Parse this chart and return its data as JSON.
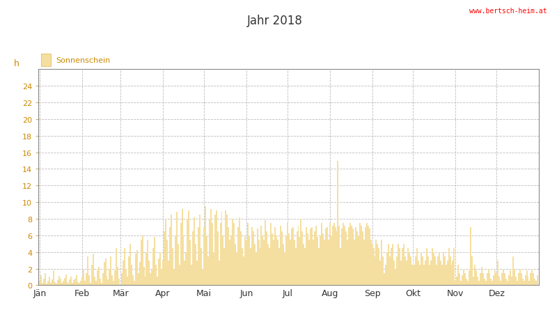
{
  "title": "Jahr 2018",
  "ylabel": "h",
  "bar_color": "#F5DFA0",
  "bar_edge_color": "#E8C878",
  "background_color": "#ffffff",
  "plot_bg_color": "#ffffff",
  "grid_color": "#bbbbbb",
  "legend_label": "Sonnenschein",
  "legend_color": "#F5DFA0",
  "legend_edge_color": "#E8C878",
  "url_text": "www.bertsch-heim.at",
  "url_color": "#ff0000",
  "ylim": [
    0,
    26
  ],
  "yticks": [
    0,
    2,
    4,
    6,
    8,
    10,
    12,
    14,
    16,
    18,
    20,
    22,
    24
  ],
  "month_labels": [
    "Jän",
    "Feb",
    "Mär",
    "Apr",
    "Mai",
    "Jun",
    "Jul",
    "Aug",
    "Sep",
    "Okt",
    "Nov",
    "Dez"
  ],
  "month_starts": [
    1,
    32,
    60,
    91,
    121,
    152,
    182,
    213,
    244,
    274,
    305,
    335
  ],
  "sunshine_hours": [
    0.5,
    1.2,
    0.3,
    0.8,
    1.5,
    0.2,
    0.5,
    1.0,
    0.3,
    0.7,
    1.8,
    0.4,
    0.2,
    0.6,
    1.1,
    0.8,
    0.3,
    0.5,
    0.9,
    1.3,
    0.4,
    0.2,
    0.7,
    1.0,
    0.3,
    0.6,
    0.8,
    1.2,
    0.4,
    0.3,
    0.5,
    1.0,
    2.0,
    0.5,
    1.5,
    3.5,
    1.2,
    0.3,
    2.5,
    3.8,
    1.0,
    0.5,
    1.8,
    2.2,
    0.8,
    0.3,
    1.5,
    2.8,
    3.2,
    1.1,
    0.7,
    2.0,
    3.5,
    1.2,
    0.5,
    1.8,
    4.5,
    2.2,
    0.8,
    0.0,
    1.5,
    3.0,
    4.5,
    2.0,
    1.0,
    3.5,
    5.0,
    2.5,
    1.2,
    0.5,
    3.8,
    4.2,
    1.5,
    2.8,
    5.5,
    6.0,
    2.2,
    1.0,
    4.0,
    5.5,
    3.0,
    1.5,
    2.0,
    4.5,
    5.8,
    2.5,
    1.0,
    3.2,
    4.0,
    2.0,
    3.0,
    6.5,
    8.0,
    5.5,
    3.0,
    7.0,
    8.5,
    4.5,
    2.0,
    6.0,
    8.8,
    5.0,
    2.5,
    7.5,
    9.2,
    6.0,
    3.0,
    4.0,
    8.0,
    9.0,
    5.5,
    2.5,
    6.5,
    8.2,
    5.0,
    3.0,
    7.0,
    8.5,
    4.5,
    2.0,
    7.0,
    9.5,
    6.0,
    3.5,
    8.0,
    9.2,
    7.5,
    4.0,
    8.5,
    9.0,
    6.5,
    3.0,
    7.5,
    8.8,
    6.0,
    4.5,
    9.0,
    8.5,
    7.0,
    5.5,
    6.0,
    8.0,
    7.5,
    5.0,
    4.0,
    7.0,
    8.2,
    6.5,
    4.5,
    3.5,
    6.0,
    5.5,
    7.5,
    6.0,
    4.5,
    7.0,
    6.5,
    5.0,
    4.0,
    6.8,
    5.5,
    4.5,
    7.2,
    6.0,
    5.5,
    7.8,
    6.5,
    5.0,
    4.5,
    7.5,
    6.2,
    5.5,
    7.0,
    6.0,
    5.5,
    4.5,
    7.2,
    6.5,
    5.0,
    4.0,
    6.0,
    7.5,
    6.2,
    5.5,
    6.8,
    7.0,
    5.5,
    4.5,
    6.5,
    7.2,
    5.8,
    8.0,
    6.5,
    5.0,
    4.5,
    7.0,
    6.2,
    5.5,
    6.8,
    7.0,
    5.5,
    6.5,
    7.2,
    5.8,
    4.5,
    6.0,
    7.5,
    6.2,
    5.5,
    6.8,
    7.0,
    5.5,
    7.5,
    6.0,
    7.2,
    7.5,
    7.0,
    6.5,
    15.0,
    7.2,
    4.5,
    6.8,
    7.5,
    7.2,
    6.5,
    5.5,
    7.0,
    7.5,
    7.2,
    6.8,
    5.5,
    7.0,
    6.5,
    6.0,
    7.5,
    7.2,
    6.5,
    5.5,
    7.0,
    7.5,
    7.2,
    6.8,
    5.5,
    5.0,
    4.5,
    3.5,
    5.5,
    5.0,
    4.5,
    3.0,
    5.5,
    3.5,
    1.5,
    2.5,
    4.0,
    5.0,
    3.5,
    4.5,
    5.0,
    3.0,
    2.0,
    3.5,
    5.0,
    4.5,
    3.0,
    4.5,
    5.0,
    3.5,
    3.0,
    4.5,
    4.0,
    3.5,
    2.5,
    3.0,
    2.5,
    3.5,
    4.5,
    3.0,
    2.5,
    4.0,
    3.5,
    2.5,
    3.0,
    4.5,
    3.5,
    2.5,
    3.0,
    4.5,
    4.0,
    3.5,
    2.5,
    3.5,
    4.0,
    3.0,
    2.5,
    4.0,
    3.5,
    2.5,
    3.0,
    4.5,
    3.5,
    2.5,
    3.0,
    4.5,
    0.5,
    1.0,
    2.5,
    1.5,
    0.5,
    1.2,
    2.0,
    1.5,
    0.8,
    0.5,
    1.8,
    7.0,
    3.5,
    1.0,
    2.5,
    1.8,
    1.0,
    0.5,
    1.5,
    2.2,
    1.5,
    0.8,
    0.5,
    1.5,
    2.0,
    1.5,
    0.8,
    0.5,
    1.2,
    1.8,
    1.5,
    3.0,
    1.0,
    0.5,
    1.5,
    2.0,
    1.5,
    0.8,
    0.5,
    1.2,
    1.8,
    1.0,
    3.5,
    2.0,
    1.0,
    0.5,
    1.5,
    2.0,
    1.5,
    0.8,
    0.5,
    1.2,
    1.8,
    1.0,
    0.5,
    1.5,
    2.0,
    1.5,
    0.8,
    0.5,
    1.2,
    1.8,
    1.0,
    0.5,
    1.5
  ]
}
